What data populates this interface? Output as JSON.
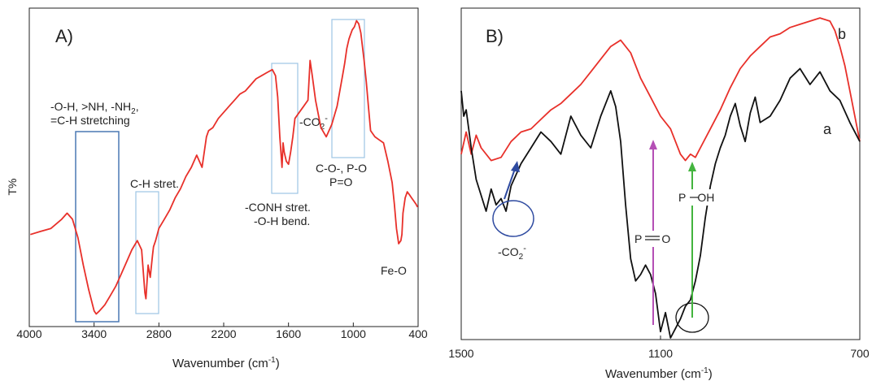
{
  "chart_data": [
    {
      "type": "line",
      "panel_label": "A)",
      "xlabel": "Wavenumber (cm",
      "xlabel_sup": "-1",
      "xlabel_close": ")",
      "ylabel": "T%",
      "xlim": [
        4000,
        400
      ],
      "xticks": [
        4000,
        3400,
        2800,
        2200,
        1600,
        1000,
        400
      ],
      "ylim": [
        0,
        100
      ],
      "series": [
        {
          "color": "#e8302a",
          "x": [
            3990,
            3900,
            3800,
            3700,
            3650,
            3600,
            3550,
            3500,
            3450,
            3400,
            3380,
            3350,
            3300,
            3250,
            3200,
            3150,
            3100,
            3050,
            3000,
            2960,
            2930,
            2920,
            2900,
            2880,
            2860,
            2850,
            2830,
            2800,
            2750,
            2700,
            2650,
            2600,
            2550,
            2500,
            2450,
            2400,
            2360,
            2340,
            2300,
            2250,
            2200,
            2150,
            2100,
            2050,
            2000,
            1950,
            1900,
            1850,
            1800,
            1750,
            1720,
            1700,
            1680,
            1660,
            1650,
            1640,
            1620,
            1600,
            1580,
            1560,
            1540,
            1500,
            1460,
            1420,
            1400,
            1380,
            1350,
            1300,
            1250,
            1200,
            1150,
            1100,
            1080,
            1060,
            1040,
            1030,
            1010,
            990,
            970,
            950,
            930,
            900,
            880,
            860,
            840,
            800,
            760,
            720,
            680,
            640,
            620,
            600,
            580,
            560,
            550,
            540,
            520,
            500,
            480,
            460,
            440,
            420,
            405
          ],
          "y": [
            28,
            29,
            30,
            33,
            35,
            33,
            27,
            18,
            10,
            3,
            2,
            3,
            5,
            8,
            11,
            15,
            19,
            23,
            26,
            23,
            9,
            7,
            18,
            14,
            21,
            24,
            26,
            30,
            33,
            36,
            40,
            43,
            47,
            50,
            54,
            50,
            60,
            62,
            63,
            66,
            68,
            70,
            72,
            74,
            75,
            77,
            79,
            80,
            81,
            82,
            80,
            73,
            60,
            50,
            58,
            55,
            52,
            51,
            55,
            60,
            66,
            68,
            70,
            72,
            85,
            80,
            72,
            63,
            60,
            64,
            70,
            80,
            84,
            89,
            92,
            93,
            95,
            96,
            98,
            97,
            94,
            85,
            78,
            70,
            62,
            60,
            59,
            58,
            52,
            45,
            38,
            30,
            25,
            26,
            28,
            35,
            40,
            42,
            41,
            40,
            39,
            38,
            37
          ]
        }
      ],
      "annotations": [
        {
          "text": "-O-H, >NH, -NH",
          "sub": "2",
          "tail": ","
        },
        {
          "text": "=C-H stretching"
        },
        {
          "text": "C-H stret."
        },
        {
          "text": "-CONH stret."
        },
        {
          "text": "-O-H bend."
        },
        {
          "text": "-CO",
          "sub": "2",
          "sup": "-"
        },
        {
          "text": "C-O-, P-O"
        },
        {
          "text": "P=O"
        },
        {
          "text": "Fe-O"
        }
      ]
    },
    {
      "type": "line",
      "panel_label": "B)",
      "xlabel": "Wavenumber (cm",
      "xlabel_sup": "-1",
      "xlabel_close": ")",
      "xlim": [
        1500,
        700
      ],
      "xticks": [
        1500,
        1100,
        700
      ],
      "ylim": [
        0,
        100
      ],
      "series": [
        {
          "name": "b",
          "color": "#e8302a",
          "x": [
            1500,
            1490,
            1480,
            1470,
            1460,
            1440,
            1420,
            1400,
            1380,
            1360,
            1340,
            1320,
            1300,
            1280,
            1260,
            1240,
            1220,
            1200,
            1180,
            1160,
            1140,
            1120,
            1100,
            1080,
            1060,
            1050,
            1040,
            1030,
            1020,
            1000,
            980,
            960,
            940,
            920,
            900,
            880,
            860,
            840,
            820,
            800,
            780,
            760,
            750,
            740,
            730,
            720,
            710,
            700
          ],
          "y": [
            58,
            65,
            58,
            64,
            60,
            56,
            57,
            62,
            65,
            66,
            69,
            72,
            74,
            77,
            80,
            84,
            88,
            92,
            94,
            90,
            82,
            76,
            70,
            66,
            58,
            56,
            58,
            57,
            60,
            66,
            72,
            79,
            85,
            89,
            92,
            95,
            96,
            98,
            99,
            100,
            101,
            100,
            97,
            92,
            86,
            78,
            70,
            62
          ]
        },
        {
          "name": "a",
          "color": "#111111",
          "x": [
            1500,
            1495,
            1490,
            1480,
            1470,
            1460,
            1450,
            1440,
            1430,
            1420,
            1410,
            1400,
            1380,
            1360,
            1340,
            1320,
            1300,
            1280,
            1260,
            1240,
            1220,
            1200,
            1190,
            1180,
            1170,
            1160,
            1150,
            1140,
            1130,
            1120,
            1110,
            1100,
            1090,
            1080,
            1070,
            1060,
            1050,
            1040,
            1030,
            1020,
            1010,
            1000,
            990,
            980,
            970,
            960,
            950,
            940,
            930,
            920,
            910,
            900,
            880,
            860,
            840,
            820,
            800,
            780,
            760,
            740,
            720,
            700
          ],
          "y": [
            78,
            70,
            72,
            60,
            50,
            45,
            40,
            47,
            42,
            44,
            40,
            48,
            55,
            60,
            65,
            62,
            58,
            70,
            64,
            60,
            70,
            78,
            73,
            62,
            42,
            25,
            18,
            20,
            23,
            20,
            14,
            2,
            8,
            0,
            3,
            6,
            10,
            12,
            18,
            26,
            38,
            48,
            55,
            60,
            64,
            70,
            74,
            67,
            62,
            71,
            76,
            68,
            70,
            75,
            82,
            85,
            80,
            84,
            78,
            75,
            68,
            62
          ]
        }
      ],
      "annotations": [
        {
          "text": "-CO",
          "sub": "2",
          "sup": "-"
        },
        {
          "text": "P",
          "tail": "O"
        },
        {
          "text": "P",
          "tail": "OH"
        }
      ]
    }
  ]
}
